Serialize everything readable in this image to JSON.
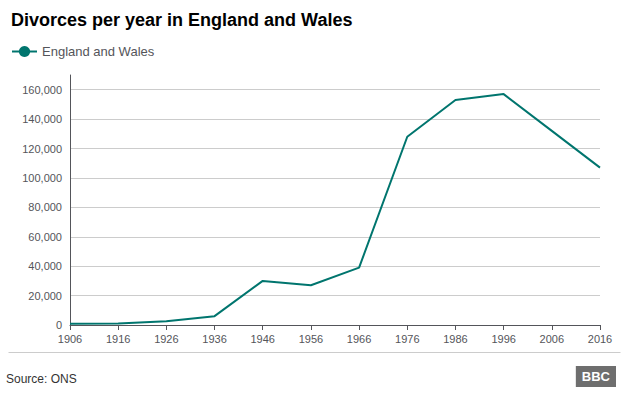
{
  "chart_data": {
    "type": "line",
    "title": "Divorces per year in England and Wales",
    "x": [
      1906,
      1916,
      1926,
      1936,
      1946,
      1956,
      1966,
      1976,
      1986,
      1996,
      2006,
      2016
    ],
    "series": [
      {
        "name": "England and Wales",
        "color": "#00756e",
        "values": [
          800,
          1000,
          2500,
          6000,
          30000,
          27000,
          39000,
          128000,
          153000,
          157000,
          132000,
          107000
        ]
      }
    ],
    "xlim": [
      1906,
      2016
    ],
    "xticks": [
      1906,
      1916,
      1926,
      1936,
      1946,
      1956,
      1966,
      1976,
      1986,
      1996,
      2006,
      2016
    ],
    "ylim": [
      0,
      170000
    ],
    "yticks": [
      0,
      {
        "value": 20000,
        "label": "20,000"
      },
      {
        "value": 40000,
        "label": "40,000"
      },
      {
        "value": 60000,
        "label": "60,000"
      },
      {
        "value": 80000,
        "label": "80,000"
      },
      {
        "value": 100000,
        "label": "100,000"
      },
      {
        "value": 120000,
        "label": "120,000"
      },
      {
        "value": 140000,
        "label": "140,000"
      },
      {
        "value": 160000,
        "label": "160,000"
      }
    ],
    "grid": true,
    "legend": "upper left",
    "annotations": [
      "Source: ONS",
      "BBC"
    ]
  }
}
